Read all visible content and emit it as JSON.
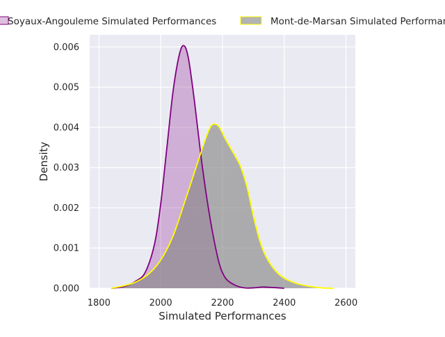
{
  "chart_data": {
    "type": "area",
    "xlabel": "Simulated Performances",
    "ylabel": "Density",
    "xlim": [
      1770,
      2630
    ],
    "ylim": [
      0,
      0.0063
    ],
    "x_ticks": [
      1800,
      2000,
      2200,
      2400,
      2600
    ],
    "x_tick_labels": [
      "1800",
      "2000",
      "2200",
      "2400",
      "2600"
    ],
    "y_ticks": [
      0,
      0.001,
      0.002,
      0.003,
      0.004,
      0.005,
      0.006
    ],
    "y_tick_labels": [
      "0.000",
      "0.001",
      "0.002",
      "0.003",
      "0.004",
      "0.005",
      "0.006"
    ],
    "grid": true,
    "legend_position": "top",
    "background": "#eaeaf2",
    "series": [
      {
        "name": "Soyaux-Angouleme Simulated Performances",
        "line_color": "#800080",
        "fill_color": "#800080",
        "fill_opacity": 0.25,
        "points": [
          [
            1840,
            0
          ],
          [
            1880,
            4e-05
          ],
          [
            1920,
            0.00018
          ],
          [
            1950,
            0.0004
          ],
          [
            1980,
            0.0011
          ],
          [
            2000,
            0.0021
          ],
          [
            2020,
            0.0035
          ],
          [
            2040,
            0.0049
          ],
          [
            2060,
            0.0058
          ],
          [
            2075,
            0.00603
          ],
          [
            2090,
            0.0057
          ],
          [
            2110,
            0.0046
          ],
          [
            2130,
            0.0033
          ],
          [
            2150,
            0.0022
          ],
          [
            2170,
            0.0013
          ],
          [
            2190,
            0.0006
          ],
          [
            2210,
            0.00025
          ],
          [
            2240,
            8e-05
          ],
          [
            2270,
            1e-05
          ],
          [
            2300,
            1e-05
          ],
          [
            2330,
            3e-05
          ],
          [
            2360,
            2e-05
          ],
          [
            2400,
            0
          ]
        ]
      },
      {
        "name": "Mont-de-Marsan Simulated Performances",
        "line_color": "#ffff00",
        "fill_color": "#808080",
        "fill_opacity": 0.6,
        "points": [
          [
            1840,
            0
          ],
          [
            1880,
            6e-05
          ],
          [
            1920,
            0.00016
          ],
          [
            1960,
            0.00035
          ],
          [
            2000,
            0.0007
          ],
          [
            2040,
            0.0013
          ],
          [
            2080,
            0.0022
          ],
          [
            2110,
            0.0029
          ],
          [
            2140,
            0.0036
          ],
          [
            2160,
            0.004
          ],
          [
            2175,
            0.00408
          ],
          [
            2190,
            0.004
          ],
          [
            2210,
            0.0037
          ],
          [
            2240,
            0.0033
          ],
          [
            2260,
            0.003
          ],
          [
            2280,
            0.0025
          ],
          [
            2300,
            0.0018
          ],
          [
            2320,
            0.0012
          ],
          [
            2340,
            0.0008
          ],
          [
            2370,
            0.00045
          ],
          [
            2400,
            0.00025
          ],
          [
            2440,
            0.00012
          ],
          [
            2480,
            5e-05
          ],
          [
            2520,
            1e-05
          ],
          [
            2560,
            0
          ]
        ]
      }
    ]
  }
}
